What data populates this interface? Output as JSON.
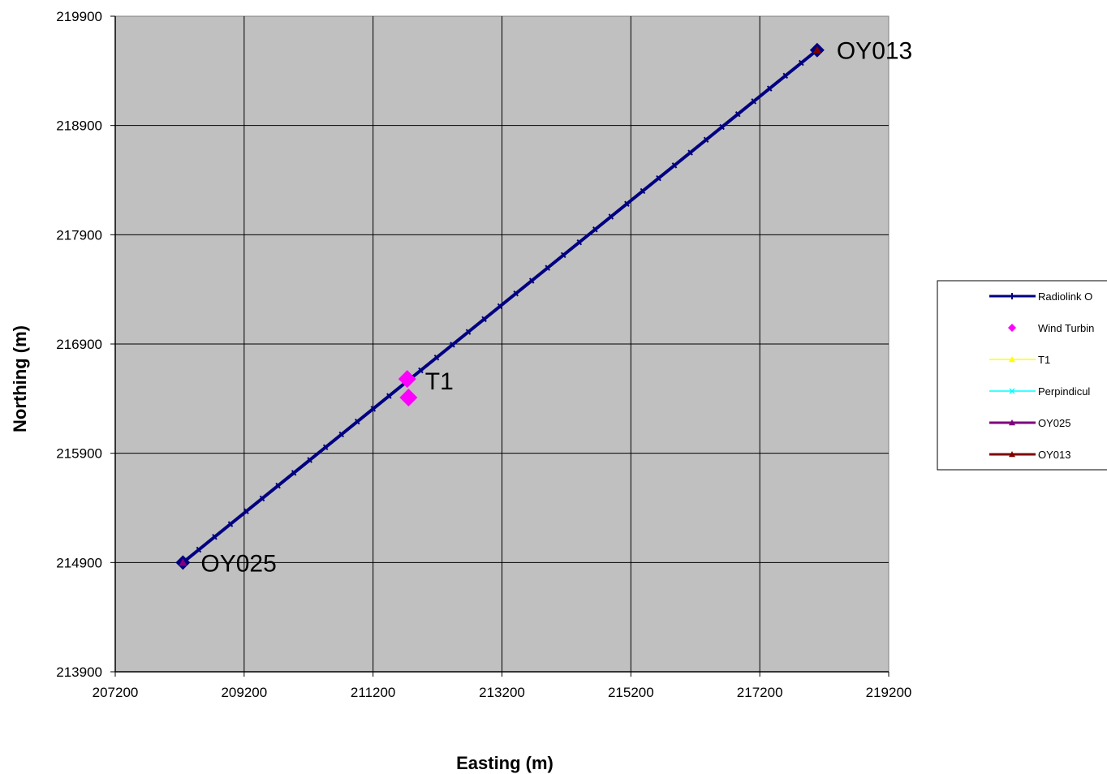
{
  "chart_data": {
    "type": "scatter",
    "xlabel": "Easting (m)",
    "ylabel": "Northing (m)",
    "xlim": [
      207200,
      219200
    ],
    "ylim": [
      213900,
      219900
    ],
    "x_ticks": [
      "207200",
      "209200",
      "211200",
      "213200",
      "215200",
      "217200",
      "219200"
    ],
    "y_ticks": [
      "213900",
      "214900",
      "215900",
      "216900",
      "217900",
      "218900",
      "219900"
    ],
    "grid": true,
    "legend_position": "right",
    "series": [
      {
        "name": "Radiolink O",
        "color": "#000080",
        "marker": "plus",
        "line": true,
        "points": [
          [
            208250,
            214900
          ],
          [
            211680,
            216580
          ],
          [
            218090,
            219590
          ]
        ]
      },
      {
        "name": "Wind Turbin",
        "color": "#ff00ff",
        "marker": "diamond",
        "line": false,
        "points": [
          [
            211730,
            216580
          ],
          [
            211750,
            216410
          ]
        ]
      },
      {
        "name": "T1",
        "color": "#ffff00",
        "marker": "triangle",
        "line": true,
        "points": []
      },
      {
        "name": "Perpindicul",
        "color": "#00ffff",
        "marker": "x",
        "line": true,
        "points": []
      },
      {
        "name": "OY025",
        "color": "#800080",
        "marker": "triangle",
        "line": true,
        "points": [
          [
            208250,
            214900
          ]
        ]
      },
      {
        "name": "OY013",
        "color": "#800000",
        "marker": "triangle",
        "line": true,
        "points": [
          [
            218090,
            219590
          ]
        ]
      }
    ],
    "annotations": [
      {
        "text": "OY013",
        "x": 218090,
        "y": 219590
      },
      {
        "text": "T1",
        "x": 211730,
        "y": 216580
      },
      {
        "text": "OY025",
        "x": 208250,
        "y": 214900
      }
    ]
  }
}
